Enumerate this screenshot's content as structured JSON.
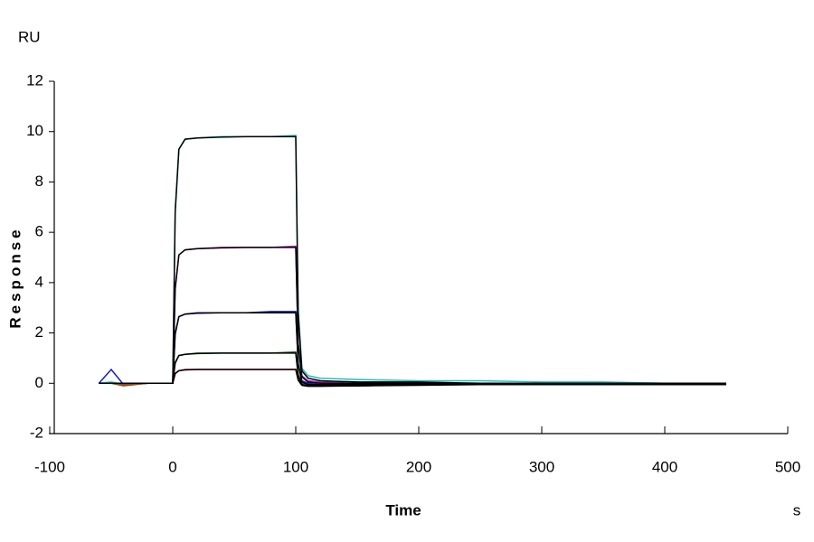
{
  "chart_data": {
    "type": "line",
    "y_unit": "RU",
    "y_label": "Response",
    "x_label": "Time",
    "x_unit": "s",
    "x": [
      -60,
      -50,
      -40,
      -20,
      0,
      2,
      5,
      10,
      20,
      40,
      60,
      80,
      100,
      102,
      105,
      110,
      120,
      150,
      200,
      250,
      300,
      350,
      400,
      450
    ],
    "series": [
      {
        "color": "#20c0c0",
        "values": [
          0,
          0.05,
          -0.05,
          0,
          0,
          6.9,
          9.3,
          9.7,
          9.75,
          9.8,
          9.8,
          9.8,
          9.85,
          2.9,
          0.6,
          0.3,
          0.2,
          0.15,
          0.1,
          0.1,
          0.05,
          0.05,
          0,
          0
        ]
      },
      {
        "color": "#c020c0",
        "values": [
          0,
          0,
          -0.05,
          0,
          0,
          3.8,
          5.1,
          5.3,
          5.35,
          5.4,
          5.4,
          5.4,
          5.45,
          1.6,
          0.3,
          0.1,
          0.05,
          0,
          0,
          0,
          0,
          -0.05,
          -0.05,
          -0.05
        ]
      },
      {
        "color": "#1020c0",
        "values": [
          0,
          0.55,
          -0.05,
          0,
          0,
          2.0,
          2.65,
          2.75,
          2.8,
          2.8,
          2.8,
          2.85,
          2.85,
          0.8,
          0.1,
          0,
          -0.05,
          -0.05,
          -0.05,
          0,
          -0.05,
          -0.05,
          0,
          -0.05
        ]
      },
      {
        "color": "#208020",
        "values": [
          0,
          0,
          -0.1,
          0,
          0,
          0.85,
          1.1,
          1.15,
          1.2,
          1.2,
          1.2,
          1.2,
          1.25,
          0.35,
          0,
          -0.1,
          -0.1,
          -0.05,
          -0.05,
          -0.05,
          -0.05,
          -0.05,
          -0.05,
          -0.05
        ]
      },
      {
        "color": "#e02020",
        "values": [
          0,
          0,
          -0.05,
          0,
          0,
          0.4,
          0.5,
          0.55,
          0.55,
          0.55,
          0.55,
          0.55,
          0.55,
          0.15,
          -0.05,
          -0.1,
          -0.1,
          -0.1,
          -0.05,
          -0.05,
          -0.05,
          -0.05,
          -0.05,
          -0.05
        ]
      },
      {
        "color": "#000000",
        "values": [
          0,
          0,
          0,
          0,
          0,
          6.8,
          9.3,
          9.7,
          9.75,
          9.78,
          9.8,
          9.8,
          9.8,
          2.8,
          0.5,
          0.2,
          0.1,
          0.05,
          0.05,
          0,
          0,
          0,
          0,
          0
        ]
      },
      {
        "color": "#000000",
        "values": [
          0,
          0,
          0,
          0,
          0,
          3.75,
          5.1,
          5.3,
          5.35,
          5.38,
          5.4,
          5.4,
          5.4,
          1.55,
          0.25,
          0.05,
          0,
          0,
          0,
          0,
          0,
          0,
          0,
          0
        ]
      },
      {
        "color": "#000000",
        "values": [
          0,
          0,
          0,
          0,
          0,
          1.95,
          2.65,
          2.75,
          2.78,
          2.8,
          2.8,
          2.8,
          2.8,
          0.75,
          0.05,
          -0.05,
          -0.05,
          -0.05,
          -0.05,
          -0.05,
          -0.05,
          -0.05,
          -0.05,
          -0.05
        ]
      },
      {
        "color": "#000000",
        "values": [
          0,
          0,
          0,
          0,
          0,
          0.8,
          1.1,
          1.15,
          1.18,
          1.2,
          1.2,
          1.2,
          1.2,
          0.3,
          -0.05,
          -0.1,
          -0.1,
          -0.1,
          -0.05,
          -0.05,
          -0.05,
          -0.05,
          -0.05,
          -0.05
        ]
      },
      {
        "color": "#000000",
        "values": [
          0,
          0,
          0,
          0,
          0,
          0.38,
          0.5,
          0.53,
          0.55,
          0.55,
          0.55,
          0.55,
          0.55,
          0.12,
          -0.08,
          -0.12,
          -0.12,
          -0.1,
          -0.08,
          -0.05,
          -0.05,
          -0.05,
          -0.05,
          -0.05
        ]
      }
    ],
    "xlim": [
      -100,
      500
    ],
    "xticks": [
      -100,
      0,
      100,
      200,
      300,
      400,
      500
    ],
    "ylim": [
      -2,
      12
    ],
    "yticks": [
      -2,
      0,
      2,
      4,
      6,
      8,
      10,
      12
    ]
  }
}
